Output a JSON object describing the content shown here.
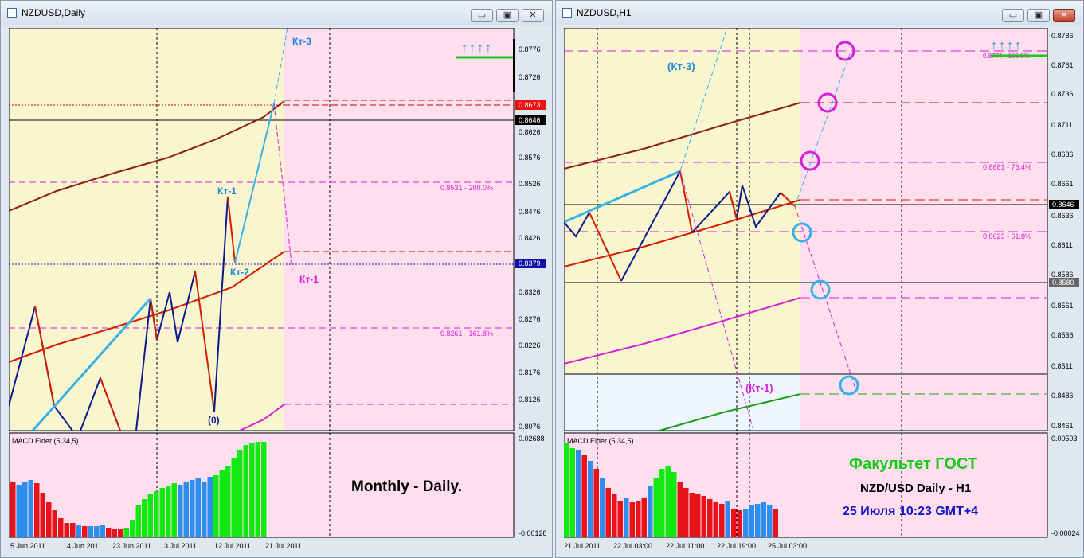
{
  "left_window": {
    "title": "NZDUSD,Daily",
    "buttons": {
      "minimize": "▭",
      "restore": "▣",
      "close": "✕"
    },
    "price_labels": [
      "0.8776",
      "0.8726",
      "0.8626",
      "0.8576",
      "0.8526",
      "0.8476",
      "0.8426",
      "0.8326",
      "0.8276",
      "0.8226",
      "0.8176",
      "0.8126",
      "0.8076"
    ],
    "marker_labels": {
      "red": "0.8673",
      "black": "0.8646",
      "blue": "0.8379"
    },
    "fib_labels": [
      "0.8531 - 200.0%",
      "0.8261 - 161.8%"
    ],
    "wave_labels": {
      "kt3": "Кт-3",
      "kt1": "Кт-1",
      "kt2": "Кт-2",
      "kt1_magenta": "Кт-1",
      "zero": "(0)"
    },
    "indicator": {
      "name": "MACD Elder (5,34,5)",
      "top": "0.02688",
      "bottom": "-0.00128"
    },
    "caption": "Monthly - Daily.",
    "dates": [
      "5 Jun 2011",
      "14 Jun 2011",
      "23 Jun 2011",
      "3 Jul 2011",
      "12 Jul 2011",
      "21 Jul 2011"
    ],
    "arrows": "↑↑↑↑"
  },
  "right_window": {
    "title": "NZDUSD,H1",
    "buttons": {
      "minimize": "▭",
      "restore": "▣",
      "close": "✕"
    },
    "price_labels": [
      "0.8786",
      "0.8761",
      "0.8736",
      "0.8711",
      "0.8686",
      "0.8661",
      "0.8636",
      "0.8611",
      "0.8586",
      "0.8561",
      "0.8536",
      "0.8511",
      "0.8486",
      "0.8461"
    ],
    "marker_labels": {
      "black": "0.8646",
      "grey": "0.8580"
    },
    "fib_labels": [
      "0.8774 - 100.0%",
      "0.8681 - 76.4%",
      "0.8623 - 61.8%"
    ],
    "wave_labels": {
      "kt3": "(Кт-3)",
      "kt1": "(Кт-1)"
    },
    "indicator": {
      "name": "MACD Elder (5,34,5)",
      "top": "0.00503",
      "bottom": "-0.00024"
    },
    "caption": {
      "line1": "Факультет ГОСТ",
      "line2": "NZD/USD Daily - H1",
      "line3": "25 Июля 10:23 GMT+4"
    },
    "dates": [
      "21 Jul 2011",
      "22 Jul 03:00",
      "22 Jul 11:00",
      "22 Jul 19:00",
      "25 Jul 03:00"
    ],
    "arrows": "↑↑↑↑"
  },
  "colors": {
    "yellow_bg": "#f9f6cf",
    "pink_bg": "#ffdfee",
    "wave_red": "#d41c00",
    "wave_blue": "#0b1a8c",
    "cyan": "#38b1e8",
    "magenta": "#d61fd6",
    "brown": "#8c1f10",
    "green": "#18c918"
  }
}
